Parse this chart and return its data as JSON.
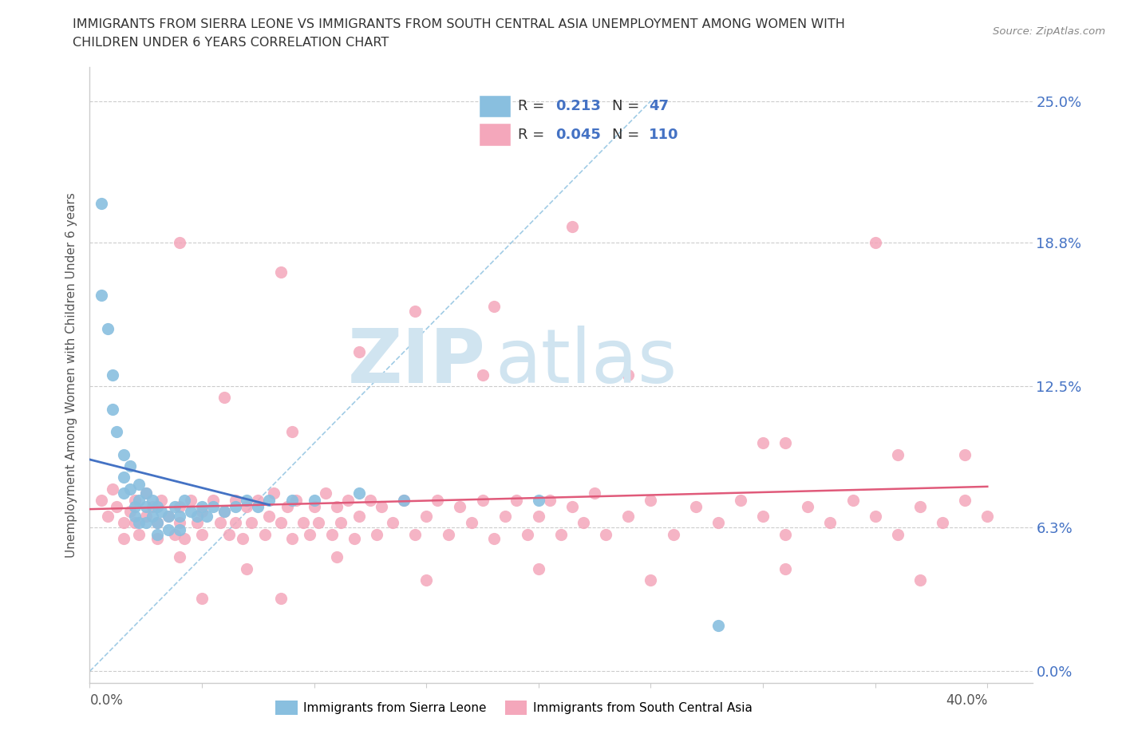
{
  "title_line1": "IMMIGRANTS FROM SIERRA LEONE VS IMMIGRANTS FROM SOUTH CENTRAL ASIA UNEMPLOYMENT AMONG WOMEN WITH",
  "title_line2": "CHILDREN UNDER 6 YEARS CORRELATION CHART",
  "source": "Source: ZipAtlas.com",
  "ylabel": "Unemployment Among Women with Children Under 6 years",
  "xlim": [
    0.0,
    0.42
  ],
  "ylim": [
    -0.005,
    0.265
  ],
  "ytick_vals": [
    0.0,
    0.063,
    0.125,
    0.188,
    0.25
  ],
  "ytick_labels": [
    "0.0%",
    "6.3%",
    "12.5%",
    "18.8%",
    "25.0%"
  ],
  "xtick_vals": [
    0.0,
    0.05,
    0.1,
    0.15,
    0.2,
    0.25,
    0.3,
    0.35,
    0.4
  ],
  "sierra_leone_color": "#89bfdf",
  "south_central_asia_color": "#f4a7bb",
  "sl_line_color": "#4472c4",
  "sca_line_color": "#e05a7a",
  "diag_line_color": "#89bfdf",
  "sierra_leone_R": "0.213",
  "sierra_leone_N": "47",
  "south_central_asia_R": "0.045",
  "south_central_asia_N": "110",
  "value_color": "#4472c4",
  "watermark_color": "#d0e4f0",
  "sl_x": [
    0.005,
    0.005,
    0.008,
    0.01,
    0.01,
    0.012,
    0.015,
    0.015,
    0.015,
    0.018,
    0.018,
    0.02,
    0.02,
    0.022,
    0.022,
    0.022,
    0.025,
    0.025,
    0.025,
    0.028,
    0.028,
    0.03,
    0.03,
    0.03,
    0.032,
    0.035,
    0.035,
    0.038,
    0.04,
    0.04,
    0.042,
    0.045,
    0.048,
    0.05,
    0.052,
    0.055,
    0.06,
    0.065,
    0.07,
    0.075,
    0.08,
    0.09,
    0.1,
    0.12,
    0.14,
    0.2,
    0.28
  ],
  "sl_y": [
    0.205,
    0.165,
    0.15,
    0.13,
    0.115,
    0.105,
    0.095,
    0.085,
    0.078,
    0.09,
    0.08,
    0.072,
    0.068,
    0.082,
    0.075,
    0.065,
    0.078,
    0.072,
    0.065,
    0.075,
    0.068,
    0.072,
    0.065,
    0.06,
    0.07,
    0.068,
    0.062,
    0.072,
    0.068,
    0.062,
    0.075,
    0.07,
    0.068,
    0.072,
    0.068,
    0.072,
    0.07,
    0.072,
    0.075,
    0.072,
    0.075,
    0.075,
    0.075,
    0.078,
    0.075,
    0.075,
    0.02
  ],
  "sca_x": [
    0.005,
    0.008,
    0.01,
    0.012,
    0.015,
    0.015,
    0.018,
    0.02,
    0.02,
    0.022,
    0.025,
    0.025,
    0.028,
    0.03,
    0.03,
    0.032,
    0.035,
    0.038,
    0.04,
    0.04,
    0.042,
    0.045,
    0.048,
    0.05,
    0.05,
    0.055,
    0.058,
    0.06,
    0.062,
    0.065,
    0.065,
    0.068,
    0.07,
    0.072,
    0.075,
    0.078,
    0.08,
    0.082,
    0.085,
    0.088,
    0.09,
    0.092,
    0.095,
    0.098,
    0.1,
    0.102,
    0.105,
    0.108,
    0.11,
    0.112,
    0.115,
    0.118,
    0.12,
    0.125,
    0.128,
    0.13,
    0.135,
    0.14,
    0.145,
    0.15,
    0.155,
    0.16,
    0.165,
    0.17,
    0.175,
    0.18,
    0.185,
    0.19,
    0.195,
    0.2,
    0.205,
    0.21,
    0.215,
    0.22,
    0.225,
    0.23,
    0.24,
    0.25,
    0.26,
    0.27,
    0.28,
    0.29,
    0.3,
    0.31,
    0.32,
    0.33,
    0.34,
    0.35,
    0.36,
    0.37,
    0.38,
    0.39,
    0.4,
    0.06,
    0.09,
    0.12,
    0.18,
    0.24,
    0.3,
    0.36,
    0.04,
    0.07,
    0.11,
    0.15,
    0.2,
    0.25,
    0.31,
    0.37,
    0.05,
    0.085
  ],
  "sca_y": [
    0.075,
    0.068,
    0.08,
    0.072,
    0.065,
    0.058,
    0.07,
    0.075,
    0.065,
    0.06,
    0.068,
    0.078,
    0.072,
    0.065,
    0.058,
    0.075,
    0.068,
    0.06,
    0.072,
    0.065,
    0.058,
    0.075,
    0.065,
    0.07,
    0.06,
    0.075,
    0.065,
    0.07,
    0.06,
    0.075,
    0.065,
    0.058,
    0.072,
    0.065,
    0.075,
    0.06,
    0.068,
    0.078,
    0.065,
    0.072,
    0.058,
    0.075,
    0.065,
    0.06,
    0.072,
    0.065,
    0.078,
    0.06,
    0.072,
    0.065,
    0.075,
    0.058,
    0.068,
    0.075,
    0.06,
    0.072,
    0.065,
    0.075,
    0.06,
    0.068,
    0.075,
    0.06,
    0.072,
    0.065,
    0.075,
    0.058,
    0.068,
    0.075,
    0.06,
    0.068,
    0.075,
    0.06,
    0.072,
    0.065,
    0.078,
    0.06,
    0.068,
    0.075,
    0.06,
    0.072,
    0.065,
    0.075,
    0.068,
    0.06,
    0.072,
    0.065,
    0.075,
    0.068,
    0.06,
    0.072,
    0.065,
    0.075,
    0.068,
    0.12,
    0.105,
    0.14,
    0.16,
    0.13,
    0.1,
    0.095,
    0.05,
    0.045,
    0.05,
    0.04,
    0.045,
    0.04,
    0.045,
    0.04,
    0.032,
    0.032
  ],
  "sca_outliers_x": [
    0.04,
    0.215,
    0.35,
    0.145,
    0.175,
    0.085,
    0.31,
    0.39
  ],
  "sca_outliers_y": [
    0.188,
    0.195,
    0.188,
    0.158,
    0.13,
    0.175,
    0.1,
    0.095
  ]
}
